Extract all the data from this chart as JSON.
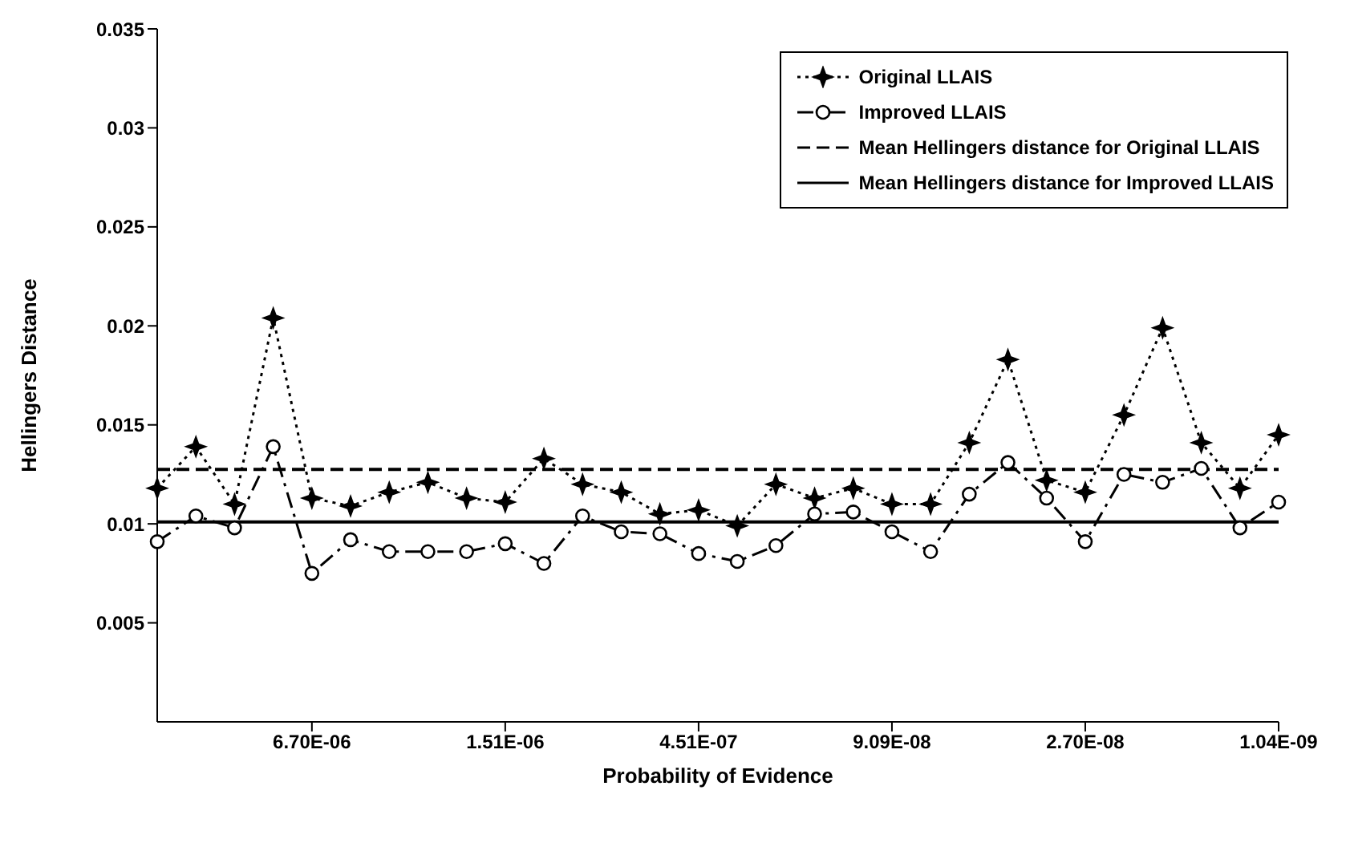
{
  "chart_data": {
    "type": "line",
    "xlabel": "Probability of Evidence",
    "ylabel": "Hellingers Distance",
    "categories": [
      null,
      null,
      null,
      null,
      "6.70E-06",
      null,
      null,
      null,
      null,
      "1.51E-06",
      null,
      null,
      null,
      null,
      "4.51E-07",
      null,
      null,
      null,
      null,
      "9.09E-08",
      null,
      null,
      null,
      null,
      "2.70E-08",
      null,
      null,
      null,
      null,
      "1.04E-09"
    ],
    "series": [
      {
        "name": "Original LLAIS",
        "color": "#000000",
        "marker": "star",
        "line_style": "dotted",
        "values": [
          0.0118,
          0.0139,
          0.011,
          0.0204,
          0.0113,
          0.0109,
          0.0116,
          0.0121,
          0.0113,
          0.0111,
          0.0133,
          0.012,
          0.0116,
          0.0105,
          0.0107,
          0.0099,
          0.012,
          0.0113,
          0.0118,
          0.011,
          0.011,
          0.0141,
          0.0183,
          0.0122,
          0.0116,
          0.0155,
          0.0199,
          0.0141,
          0.0118,
          0.0145
        ]
      },
      {
        "name": "Improved LLAIS",
        "color": "#000000",
        "marker": "circle",
        "line_style": "dashed",
        "values": [
          0.0091,
          0.0104,
          0.0098,
          0.0139,
          0.0075,
          0.0092,
          0.0086,
          0.0086,
          0.0086,
          0.009,
          0.008,
          0.0104,
          0.0096,
          0.0095,
          0.0085,
          0.0081,
          0.0089,
          0.0105,
          0.0106,
          0.0096,
          0.0086,
          0.0115,
          0.0131,
          0.0113,
          0.0091,
          0.0125,
          0.0121,
          0.0128,
          0.0098,
          0.0111
        ]
      }
    ],
    "ref_lines": [
      {
        "axis": "y",
        "value": 0.01275,
        "label": "Mean Hellingers distance for Original LLAIS",
        "color": "#000000",
        "line_style": "dashed"
      },
      {
        "axis": "y",
        "value": 0.0101,
        "label": "Mean Hellingers distance for Improved LLAIS",
        "color": "#000000",
        "line_style": "solid"
      }
    ],
    "ylim": [
      0,
      0.035
    ],
    "yticks": [
      0.005,
      0.01,
      0.015,
      0.02,
      0.025,
      0.03,
      0.035
    ],
    "legend": "top right"
  }
}
